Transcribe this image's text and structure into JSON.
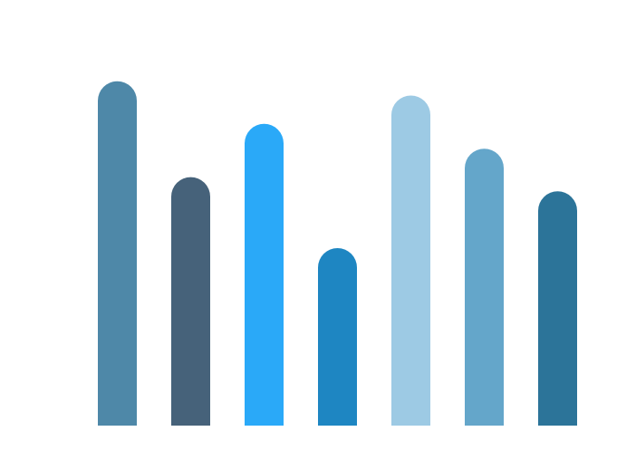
{
  "chart_data": {
    "type": "bar",
    "categories": [
      "",
      "",
      "",
      "",
      "",
      "",
      ""
    ],
    "values": [
      97,
      70,
      85,
      50,
      93,
      78,
      66
    ],
    "ylim": [
      0,
      100
    ],
    "grid": false,
    "legend": "none",
    "bar_style": "rounded-top",
    "colors": [
      "#4e88a8",
      "#46627a",
      "#2aa9f8",
      "#1e86c2",
      "#9dcae4",
      "#64a6ca",
      "#2c7499"
    ]
  }
}
